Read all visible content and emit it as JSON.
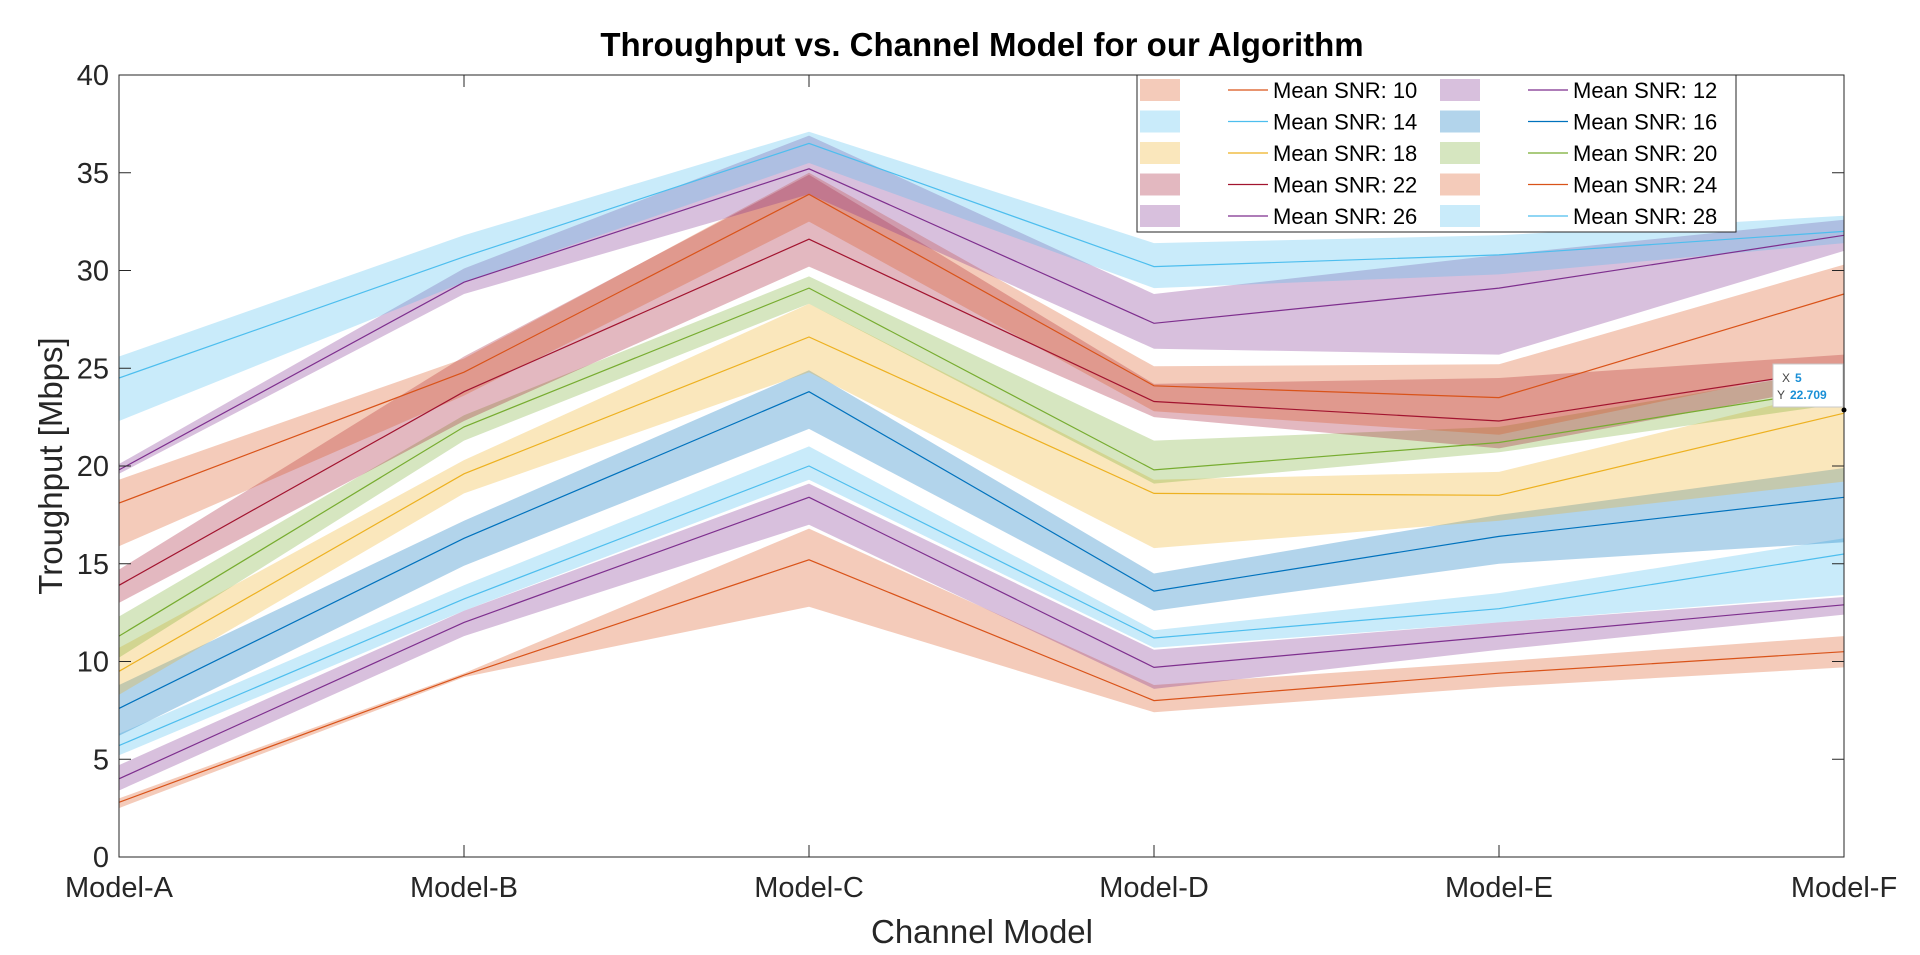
{
  "chart_data": {
    "type": "area",
    "title": "Throughput vs. Channel Model for our Algorithm",
    "xlabel": "Channel Model",
    "ylabel": "Troughput [Mbps]",
    "categories": [
      "Model-A",
      "Model-B",
      "Model-C",
      "Model-D",
      "Model-E",
      "Model-F"
    ],
    "ylim": [
      0,
      40
    ],
    "yticks": [
      0,
      5,
      10,
      15,
      20,
      25,
      30,
      35,
      40
    ],
    "grid": false,
    "legend_position": "top-right",
    "series": [
      {
        "name": "Mean SNR: 10",
        "color": "#d95319",
        "values": [
          2.8,
          9.3,
          15.2,
          8.0,
          9.4,
          10.5
        ],
        "lower": [
          2.5,
          9.2,
          12.8,
          7.4,
          8.7,
          9.7
        ],
        "upper": [
          3.0,
          9.4,
          16.8,
          8.8,
          10.0,
          11.3
        ]
      },
      {
        "name": "Mean SNR: 12",
        "color": "#7e2f8e",
        "values": [
          4.0,
          12.0,
          18.4,
          9.7,
          11.3,
          12.9
        ],
        "lower": [
          3.4,
          11.3,
          17.0,
          8.6,
          10.6,
          12.4
        ],
        "upper": [
          4.7,
          12.6,
          19.1,
          10.6,
          12.0,
          13.3
        ]
      },
      {
        "name": "Mean SNR: 14",
        "color": "#4dbeee",
        "values": [
          5.7,
          13.2,
          20.0,
          11.2,
          12.7,
          15.5
        ],
        "lower": [
          5.2,
          12.6,
          19.3,
          10.7,
          12.0,
          13.4
        ],
        "upper": [
          6.3,
          13.9,
          21.0,
          11.6,
          13.5,
          16.3
        ]
      },
      {
        "name": "Mean SNR: 16",
        "color": "#0072bd",
        "values": [
          7.6,
          16.3,
          23.8,
          13.6,
          16.4,
          18.4
        ],
        "lower": [
          6.2,
          14.9,
          21.9,
          12.6,
          15.0,
          16.1
        ],
        "upper": [
          8.8,
          17.2,
          24.9,
          14.5,
          17.5,
          19.9
        ]
      },
      {
        "name": "Mean SNR: 18",
        "color": "#edb120",
        "values": [
          9.5,
          19.6,
          26.6,
          18.6,
          18.5,
          22.7
        ],
        "lower": [
          8.3,
          18.6,
          24.8,
          15.8,
          17.2,
          19.2
        ],
        "upper": [
          10.7,
          20.3,
          28.3,
          19.3,
          19.7,
          24.0
        ]
      },
      {
        "name": "Mean SNR: 20",
        "color": "#77ac30",
        "values": [
          11.3,
          22.0,
          29.1,
          19.8,
          21.2,
          24.0
        ],
        "lower": [
          10.2,
          21.3,
          28.3,
          19.1,
          20.7,
          23.2
        ],
        "upper": [
          12.3,
          22.6,
          29.7,
          21.3,
          22.0,
          25.0
        ]
      },
      {
        "name": "Mean SNR: 22",
        "color": "#a2142f",
        "values": [
          13.9,
          23.8,
          31.6,
          23.3,
          22.3,
          25.0
        ],
        "lower": [
          13.0,
          22.3,
          30.2,
          22.5,
          20.9,
          24.2
        ],
        "upper": [
          14.7,
          25.6,
          34.9,
          24.2,
          24.5,
          25.7
        ]
      },
      {
        "name": "Mean SNR: 24",
        "color": "#d95319",
        "values": [
          18.1,
          24.8,
          33.9,
          24.1,
          23.5,
          28.8
        ],
        "lower": [
          15.9,
          23.6,
          32.5,
          22.8,
          21.6,
          25.2
        ],
        "upper": [
          19.3,
          25.5,
          35.0,
          25.1,
          25.2,
          30.3
        ]
      },
      {
        "name": "Mean SNR: 26",
        "color": "#7e2f8e",
        "values": [
          19.8,
          29.4,
          35.2,
          27.3,
          29.1,
          31.8
        ],
        "lower": [
          19.6,
          28.8,
          33.9,
          26.0,
          25.7,
          31.0
        ],
        "upper": [
          20.1,
          30.1,
          36.9,
          28.8,
          30.8,
          32.6
        ]
      },
      {
        "name": "Mean SNR: 28",
        "color": "#4dbeee",
        "values": [
          24.5,
          30.7,
          36.5,
          30.2,
          30.8,
          32.0
        ],
        "lower": [
          22.3,
          29.4,
          35.5,
          29.1,
          29.8,
          31.4
        ],
        "upper": [
          25.6,
          31.8,
          37.1,
          31.4,
          31.8,
          32.8
        ]
      }
    ],
    "datatip": {
      "x_label": "X",
      "x_value": "5",
      "y_label": "Y",
      "y_value": "22.709"
    }
  }
}
